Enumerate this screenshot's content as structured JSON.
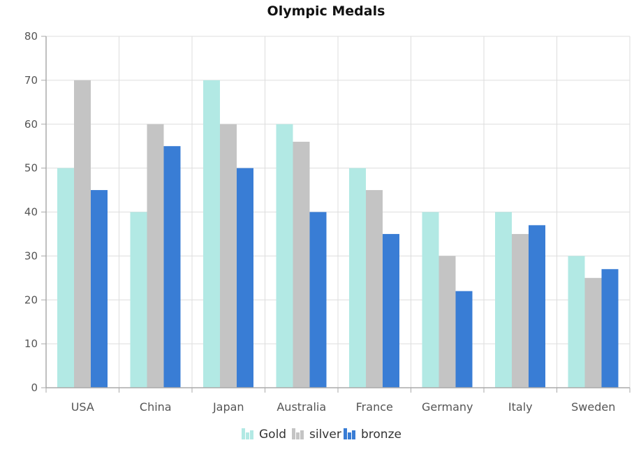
{
  "chart_data": {
    "type": "bar",
    "title": "Olympic Medals",
    "xlabel": "",
    "ylabel": "",
    "categories": [
      "USA",
      "China",
      "Japan",
      "Australia",
      "France",
      "Germany",
      "Italy",
      "Sweden"
    ],
    "series": [
      {
        "name": "Gold",
        "color": "#b2e9e4",
        "values": [
          50,
          40,
          70,
          60,
          50,
          40,
          40,
          30
        ]
      },
      {
        "name": "silver",
        "color": "#c4c4c4",
        "values": [
          70,
          60,
          60,
          56,
          45,
          30,
          35,
          25
        ]
      },
      {
        "name": "bronze",
        "color": "#397dd5",
        "values": [
          45,
          55,
          50,
          40,
          35,
          22,
          37,
          27
        ]
      }
    ],
    "ylim": [
      0,
      80
    ],
    "yticks": [
      0,
      10,
      20,
      30,
      40,
      50,
      60,
      70,
      80
    ],
    "grid": true,
    "legend_position": "bottom-center",
    "axis_color": "#aaaaaa",
    "grid_color": "#dddddd"
  }
}
